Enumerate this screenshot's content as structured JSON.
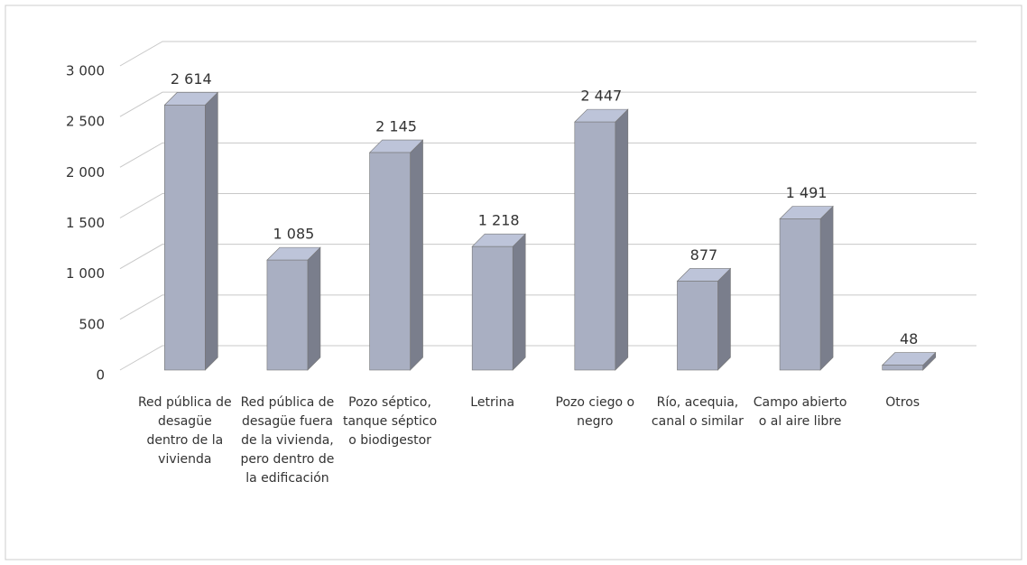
{
  "chart_data": {
    "type": "bar3d",
    "categories": [
      "Red pública de desagüe dentro de la vivienda",
      "Red pública de desagüe fuera de la vivienda, pero dentro de la edificación",
      "Pozo séptico, tanque séptico o biodigestor",
      "Letrina",
      "Pozo ciego o negro",
      "Río, acequia, canal o similar",
      "Campo abierto o al aire libre",
      "Otros"
    ],
    "values": [
      2614,
      1085,
      2145,
      1218,
      2447,
      877,
      1491,
      48
    ],
    "value_labels": [
      "2 614",
      "1 085",
      "2 145",
      "1 218",
      "2 447",
      "877",
      "1 491",
      "48"
    ],
    "color": "#a9afc2",
    "ylim": [
      0,
      3000
    ],
    "yticks": [
      0,
      500,
      {
        "value": 1000,
        "label": "1 000"
      },
      {
        "value": 1500,
        "label": "1 500"
      },
      {
        "value": 2000,
        "label": "2 000"
      },
      {
        "value": 2500,
        "label": "2 500"
      },
      {
        "value": 3000,
        "label": "3 000"
      }
    ],
    "grid": true
  }
}
